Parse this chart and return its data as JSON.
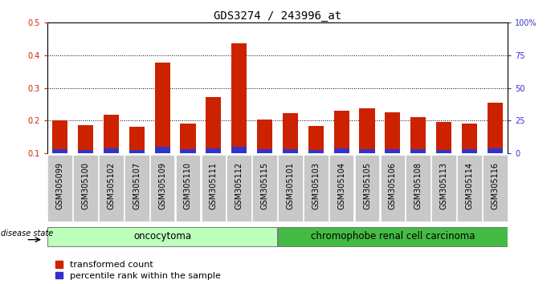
{
  "title": "GDS3274 / 243996_at",
  "samples": [
    "GSM305099",
    "GSM305100",
    "GSM305102",
    "GSM305107",
    "GSM305109",
    "GSM305110",
    "GSM305111",
    "GSM305112",
    "GSM305115",
    "GSM305101",
    "GSM305103",
    "GSM305104",
    "GSM305105",
    "GSM305106",
    "GSM305108",
    "GSM305113",
    "GSM305114",
    "GSM305116"
  ],
  "red_values": [
    0.202,
    0.187,
    0.218,
    0.182,
    0.378,
    0.192,
    0.272,
    0.437,
    0.203,
    0.224,
    0.185,
    0.23,
    0.238,
    0.226,
    0.212,
    0.195,
    0.192,
    0.256
  ],
  "blue_values": [
    0.013,
    0.01,
    0.014,
    0.01,
    0.02,
    0.013,
    0.015,
    0.02,
    0.012,
    0.013,
    0.011,
    0.014,
    0.013,
    0.013,
    0.012,
    0.01,
    0.012,
    0.014
  ],
  "n_oncocytoma": 9,
  "n_carcinoma": 9,
  "ylim_left": [
    0.1,
    0.5
  ],
  "ylim_right": [
    0,
    100
  ],
  "yticks_left": [
    0.1,
    0.2,
    0.3,
    0.4,
    0.5
  ],
  "yticks_right": [
    0,
    25,
    50,
    75,
    100
  ],
  "bar_color": "#CC2200",
  "blue_color": "#3333CC",
  "plot_bg": "#FFFFFF",
  "label_bg": "#C8C8C8",
  "onco_color": "#BBFFBB",
  "crc_color": "#44BB44",
  "title_fontsize": 10,
  "tick_fontsize": 7,
  "group_fontsize": 8.5,
  "legend_fontsize": 8
}
